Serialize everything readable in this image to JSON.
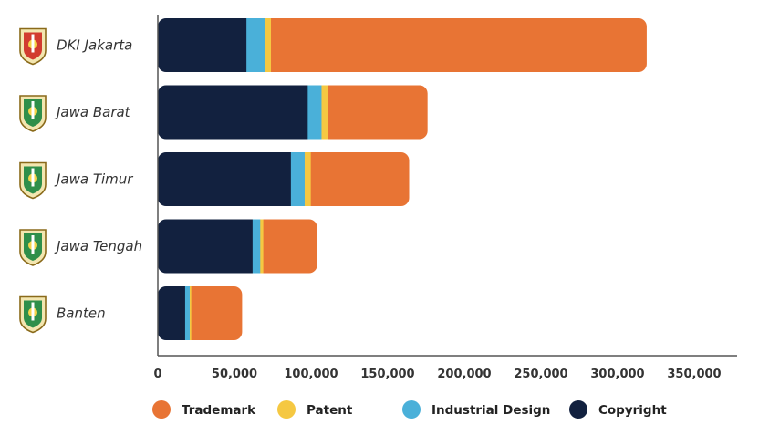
{
  "chart_data": {
    "type": "bar",
    "orientation": "horizontal",
    "stacked": true,
    "categories": [
      "DKI Jakarta",
      "Jawa Barat",
      "Jawa Timur",
      "Jawa Tengah",
      "Banten"
    ],
    "category_icons": [
      "jakarta-emblem-icon",
      "jawa-barat-emblem-icon",
      "jawa-timur-emblem-icon",
      "jawa-tengah-emblem-icon",
      "banten-emblem-icon"
    ],
    "series": [
      {
        "name": "Copyright",
        "color": "#12213f",
        "values": [
          58000,
          98000,
          87000,
          62000,
          18000
        ]
      },
      {
        "name": "Industrial Design",
        "color": "#4ab0d9",
        "values": [
          12000,
          9000,
          9000,
          5000,
          3000
        ]
      },
      {
        "name": "Patent",
        "color": "#f5c842",
        "values": [
          4000,
          4000,
          4000,
          2000,
          1000
        ]
      },
      {
        "name": "Trademark",
        "color": "#e87434",
        "values": [
          245000,
          65000,
          64000,
          35000,
          33000
        ]
      }
    ],
    "legend_order": [
      "Trademark",
      "Patent",
      "Industrial Design",
      "Copyright"
    ],
    "x_ticks": [
      "0",
      "50,000",
      "100,000",
      "150,000",
      "200,000",
      "250,000",
      "300,000",
      "350,000"
    ],
    "xlim": [
      0,
      380000
    ],
    "legend_position": "bottom",
    "grid": false
  }
}
